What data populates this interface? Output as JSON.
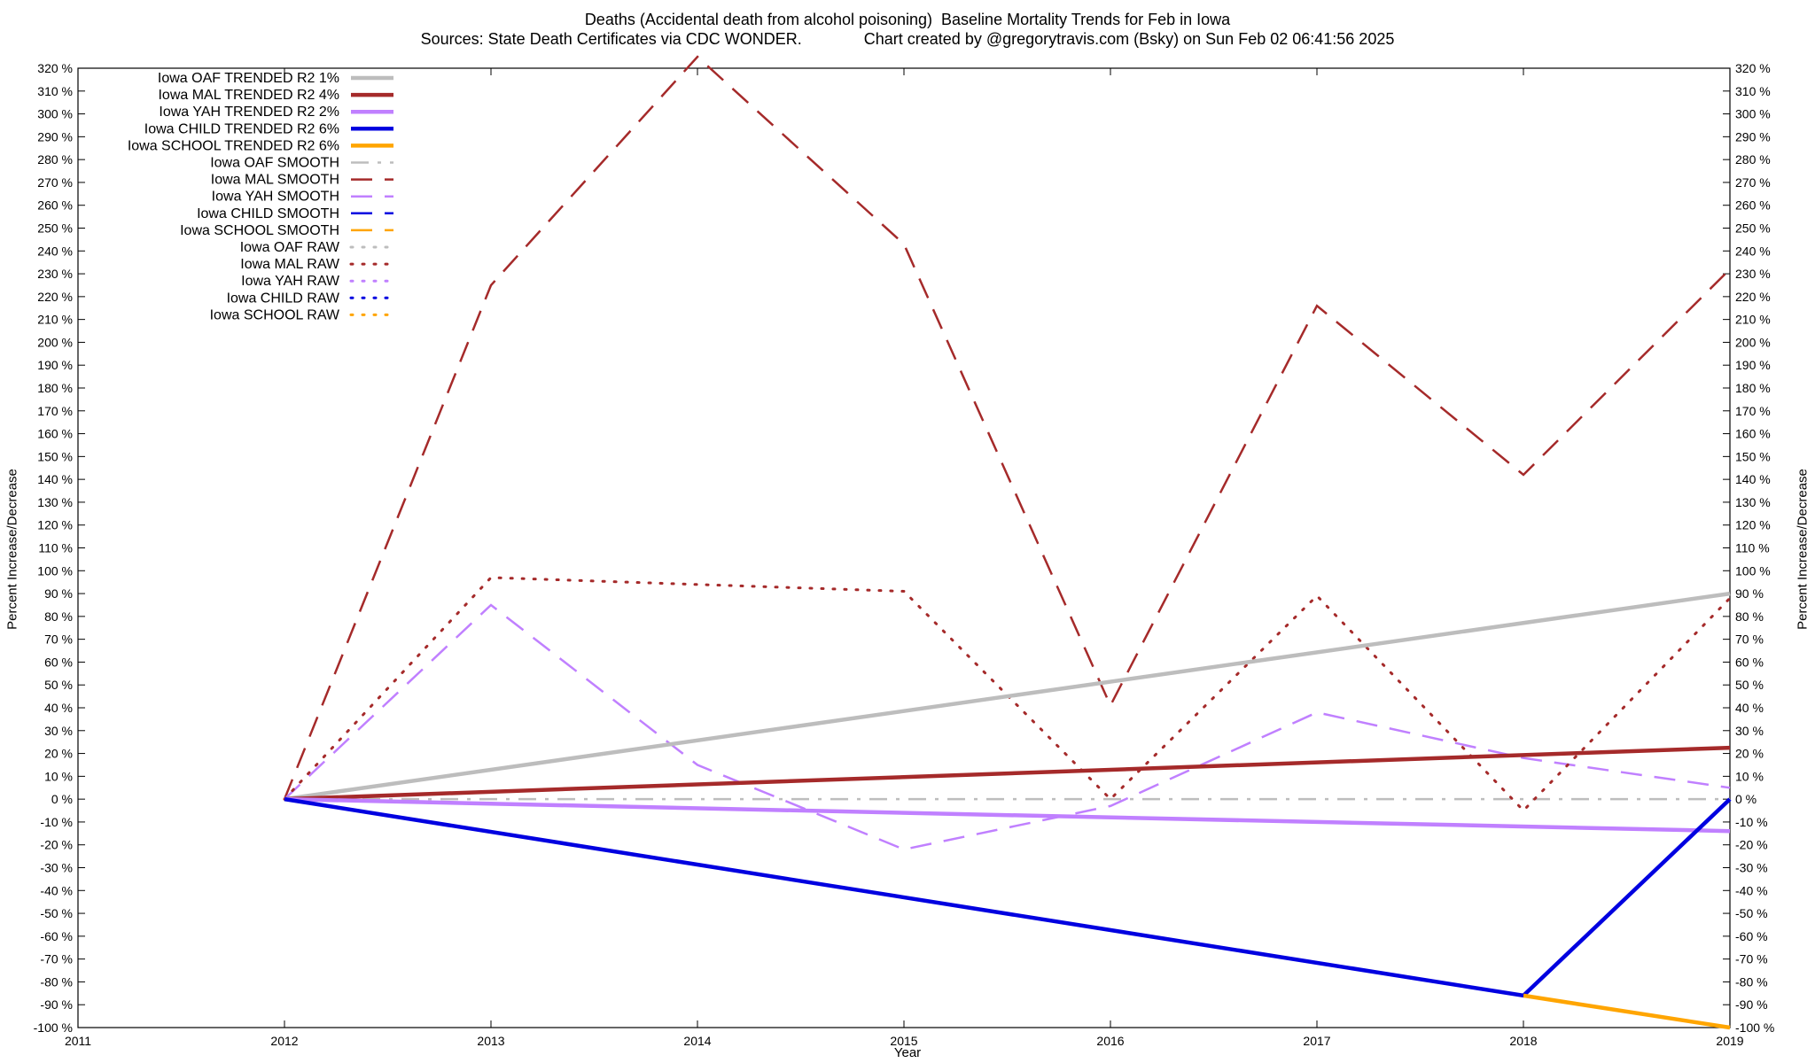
{
  "chart_data": {
    "type": "line",
    "title": "Deaths (Accidental death from alcohol poisoning)  Baseline Mortality Trends for Feb in Iowa",
    "subtitle": "Sources: State Death Certificates via CDC WONDER.              Chart created by @gregorytravis.com (Bsky) on Sun Feb 02 06:41:56 2025",
    "xlabel": "Year",
    "ylabel": "Percent Increase/Decrease",
    "xlim": [
      2011,
      2019
    ],
    "ylim": [
      -100,
      320
    ],
    "x_ticks": [
      "2011",
      "2012",
      "2013",
      "2014",
      "2015",
      "2016",
      "2017",
      "2018",
      "2019"
    ],
    "y_tick_step": 10,
    "y_tick_suffix": " %",
    "grid": false,
    "legend_position": "top-left",
    "series": [
      {
        "name": "Iowa OAF TRENDED R2   1%",
        "style": "solid",
        "color": "#bdbdbd",
        "points": [
          [
            2012,
            0
          ],
          [
            2019,
            90
          ]
        ]
      },
      {
        "name": "Iowa MAL TRENDED R2   4%",
        "style": "solid",
        "color": "#a52a2a",
        "points": [
          [
            2012,
            0
          ],
          [
            2019,
            22.5
          ]
        ]
      },
      {
        "name": "Iowa YAH TRENDED R2   2%",
        "style": "solid",
        "color": "#c080ff",
        "points": [
          [
            2012,
            0
          ],
          [
            2019,
            -14
          ]
        ]
      },
      {
        "name": "Iowa CHILD TRENDED R2   6%",
        "style": "solid",
        "color": "#0000e0",
        "points": [
          [
            2012,
            0
          ],
          [
            2018,
            -86
          ],
          [
            2019,
            0
          ]
        ]
      },
      {
        "name": "Iowa SCHOOL TRENDED R2   6%",
        "style": "solid",
        "color": "#ffa500",
        "points": [
          [
            2018,
            -86
          ],
          [
            2019,
            -100
          ]
        ]
      },
      {
        "name": "Iowa OAF SMOOTH",
        "style": "dashdot",
        "color": "#bdbdbd",
        "points": [
          [
            2012,
            0
          ],
          [
            2013,
            0
          ],
          [
            2014,
            0
          ],
          [
            2015,
            0
          ],
          [
            2016,
            0
          ],
          [
            2017,
            0
          ],
          [
            2018,
            0
          ],
          [
            2019,
            0
          ]
        ]
      },
      {
        "name": "Iowa MAL SMOOTH",
        "style": "dashed",
        "color": "#a52a2a",
        "points": [
          [
            2012,
            0
          ],
          [
            2013,
            225
          ],
          [
            2014,
            325
          ],
          [
            2015,
            243
          ],
          [
            2016,
            41
          ],
          [
            2017,
            216
          ],
          [
            2018,
            142
          ],
          [
            2019,
            232
          ]
        ]
      },
      {
        "name": "Iowa YAH SMOOTH",
        "style": "dashed",
        "color": "#c080ff",
        "points": [
          [
            2012,
            0
          ],
          [
            2013,
            85
          ],
          [
            2014,
            15
          ],
          [
            2015,
            -22
          ],
          [
            2016,
            -3
          ],
          [
            2017,
            38
          ],
          [
            2018,
            18
          ],
          [
            2019,
            5
          ]
        ]
      },
      {
        "name": "Iowa CHILD SMOOTH",
        "style": "dashed",
        "color": "#0000e0",
        "points": []
      },
      {
        "name": "Iowa SCHOOL SMOOTH",
        "style": "dashed",
        "color": "#ffa500",
        "points": []
      },
      {
        "name": "Iowa OAF RAW",
        "style": "dotted",
        "color": "#bdbdbd",
        "points": []
      },
      {
        "name": "Iowa MAL RAW",
        "style": "dotted",
        "color": "#a52a2a",
        "points": [
          [
            2012,
            0
          ],
          [
            2013,
            97
          ],
          [
            2014,
            94
          ],
          [
            2015,
            91
          ],
          [
            2016,
            0
          ],
          [
            2017,
            89
          ],
          [
            2018,
            -5
          ],
          [
            2019,
            88
          ]
        ]
      },
      {
        "name": "Iowa YAH RAW",
        "style": "dotted",
        "color": "#c080ff",
        "points": []
      },
      {
        "name": "Iowa CHILD RAW",
        "style": "dotted",
        "color": "#0000e0",
        "points": []
      },
      {
        "name": "Iowa SCHOOL RAW",
        "style": "dotted",
        "color": "#ffa500",
        "points": []
      }
    ]
  }
}
